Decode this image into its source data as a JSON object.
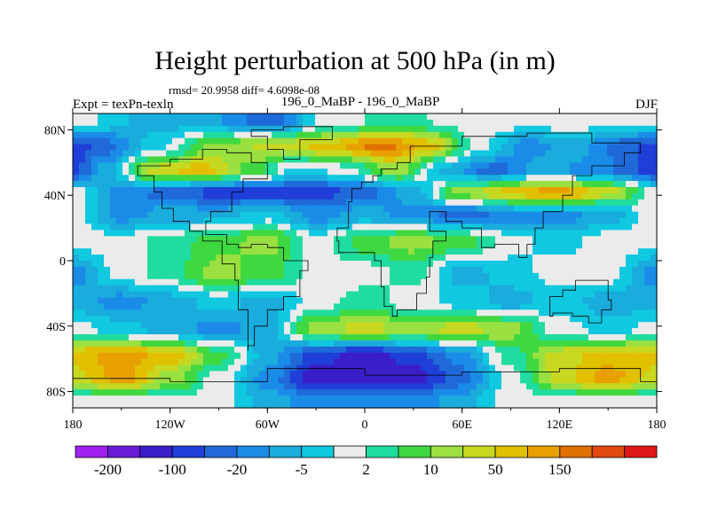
{
  "chart_data": {
    "type": "heatmap",
    "title": "Height perturbation at 500 hPa (in m)",
    "stats_label": "rmsd= 20.9958 diff= 4.6098e-08",
    "left_label": "Expt = texPn-texln",
    "center_label": "196_0_MaBP - 196_0_MaBP",
    "right_label": "DJF",
    "x_ticks": [
      "180",
      "120W",
      "60W",
      "0",
      "60E",
      "120E",
      "180"
    ],
    "x_tick_values": [
      -180,
      -120,
      -60,
      0,
      60,
      120,
      180
    ],
    "y_ticks": [
      "80N",
      "40N",
      "0",
      "40S",
      "80S"
    ],
    "y_tick_values": [
      80,
      40,
      0,
      -40,
      -80
    ],
    "xlim": [
      -180,
      180
    ],
    "ylim": [
      -90,
      90
    ],
    "colorbar_colors": [
      "#a020f0",
      "#6a1bd8",
      "#3a1ec8",
      "#1f3fd8",
      "#1f6ad8",
      "#1a8ce8",
      "#19acdc",
      "#10c8e0",
      "#ebebeb",
      "#20dca0",
      "#40d840",
      "#9ae040",
      "#c8d820",
      "#e0c000",
      "#e8a000",
      "#e07000",
      "#e04a10",
      "#e01818"
    ],
    "colorbar_labels": [
      "-200",
      "-100",
      "-20",
      "-5",
      "2",
      "10",
      "50",
      "150"
    ],
    "bands": [
      {
        "lat": 85,
        "lon": [
          -180,
          -130,
          -100,
          -60,
          -20,
          20,
          60,
          100,
          140,
          180
        ],
        "codes": [
          8,
          6,
          6,
          4,
          8,
          9,
          8,
          8,
          8,
          8
        ]
      },
      {
        "lat": 70,
        "lon": [
          -180,
          -160,
          -130,
          -90,
          -50,
          -20,
          10,
          40,
          70,
          100,
          130,
          160,
          180
        ],
        "codes": [
          3,
          4,
          7,
          11,
          12,
          13,
          15,
          13,
          8,
          5,
          6,
          4,
          3
        ]
      },
      {
        "lat": 55,
        "lon": [
          -180,
          -160,
          -130,
          -100,
          -70,
          -40,
          -10,
          20,
          50,
          80,
          110,
          140,
          180
        ],
        "codes": [
          3,
          6,
          12,
          13,
          10,
          7,
          8,
          11,
          6,
          4,
          6,
          5,
          3
        ]
      },
      {
        "lat": 42,
        "lon": [
          -180,
          -150,
          -120,
          -90,
          -60,
          -30,
          0,
          30,
          60,
          90,
          120,
          150,
          180
        ],
        "codes": [
          8,
          5,
          4,
          3,
          3,
          3,
          4,
          6,
          11,
          13,
          14,
          12,
          8
        ]
      },
      {
        "lat": 28,
        "lon": [
          -180,
          -150,
          -120,
          -90,
          -60,
          -30,
          0,
          30,
          60,
          90,
          120,
          150,
          180
        ],
        "codes": [
          8,
          5,
          6,
          6,
          7,
          5,
          6,
          5,
          4,
          5,
          5,
          6,
          8
        ]
      },
      {
        "lat": 12,
        "lon": [
          -180,
          -150,
          -120,
          -90,
          -60,
          -30,
          0,
          30,
          60,
          90,
          120,
          150,
          180
        ],
        "codes": [
          8,
          8,
          9,
          10,
          11,
          8,
          10,
          11,
          10,
          8,
          7,
          8,
          8
        ]
      },
      {
        "lat": -8,
        "lon": [
          -180,
          -150,
          -120,
          -90,
          -60,
          -30,
          0,
          30,
          60,
          90,
          120,
          150,
          180
        ],
        "codes": [
          5,
          8,
          9,
          11,
          10,
          8,
          8,
          9,
          6,
          7,
          8,
          8,
          5
        ]
      },
      {
        "lat": -25,
        "lon": [
          -180,
          -150,
          -120,
          -90,
          -60,
          -30,
          0,
          30,
          60,
          90,
          120,
          150,
          180
        ],
        "codes": [
          6,
          5,
          6,
          7,
          6,
          8,
          9,
          8,
          7,
          6,
          7,
          6,
          6
        ]
      },
      {
        "lat": -42,
        "lon": [
          -180,
          -150,
          -120,
          -90,
          -60,
          -30,
          0,
          30,
          60,
          90,
          120,
          150,
          180
        ],
        "codes": [
          8,
          7,
          6,
          5,
          6,
          11,
          12,
          11,
          12,
          11,
          8,
          7,
          8
        ]
      },
      {
        "lat": -58,
        "lon": [
          -180,
          -150,
          -120,
          -90,
          -60,
          -30,
          0,
          30,
          60,
          90,
          120,
          150,
          180
        ],
        "codes": [
          13,
          14,
          13,
          10,
          6,
          3,
          2,
          3,
          5,
          9,
          12,
          13,
          13
        ]
      },
      {
        "lat": -72,
        "lon": [
          -180,
          -150,
          -120,
          -90,
          -60,
          -30,
          0,
          30,
          60,
          90,
          120,
          150,
          180
        ],
        "codes": [
          12,
          14,
          11,
          8,
          5,
          2,
          2,
          2,
          4,
          8,
          12,
          14,
          12
        ]
      },
      {
        "lat": -86,
        "lon": [
          -180,
          -150,
          -120,
          -90,
          -60,
          -30,
          0,
          30,
          60,
          90,
          120,
          150,
          180
        ],
        "codes": [
          8,
          8,
          8,
          8,
          6,
          5,
          5,
          5,
          6,
          8,
          8,
          8,
          8
        ]
      }
    ]
  }
}
